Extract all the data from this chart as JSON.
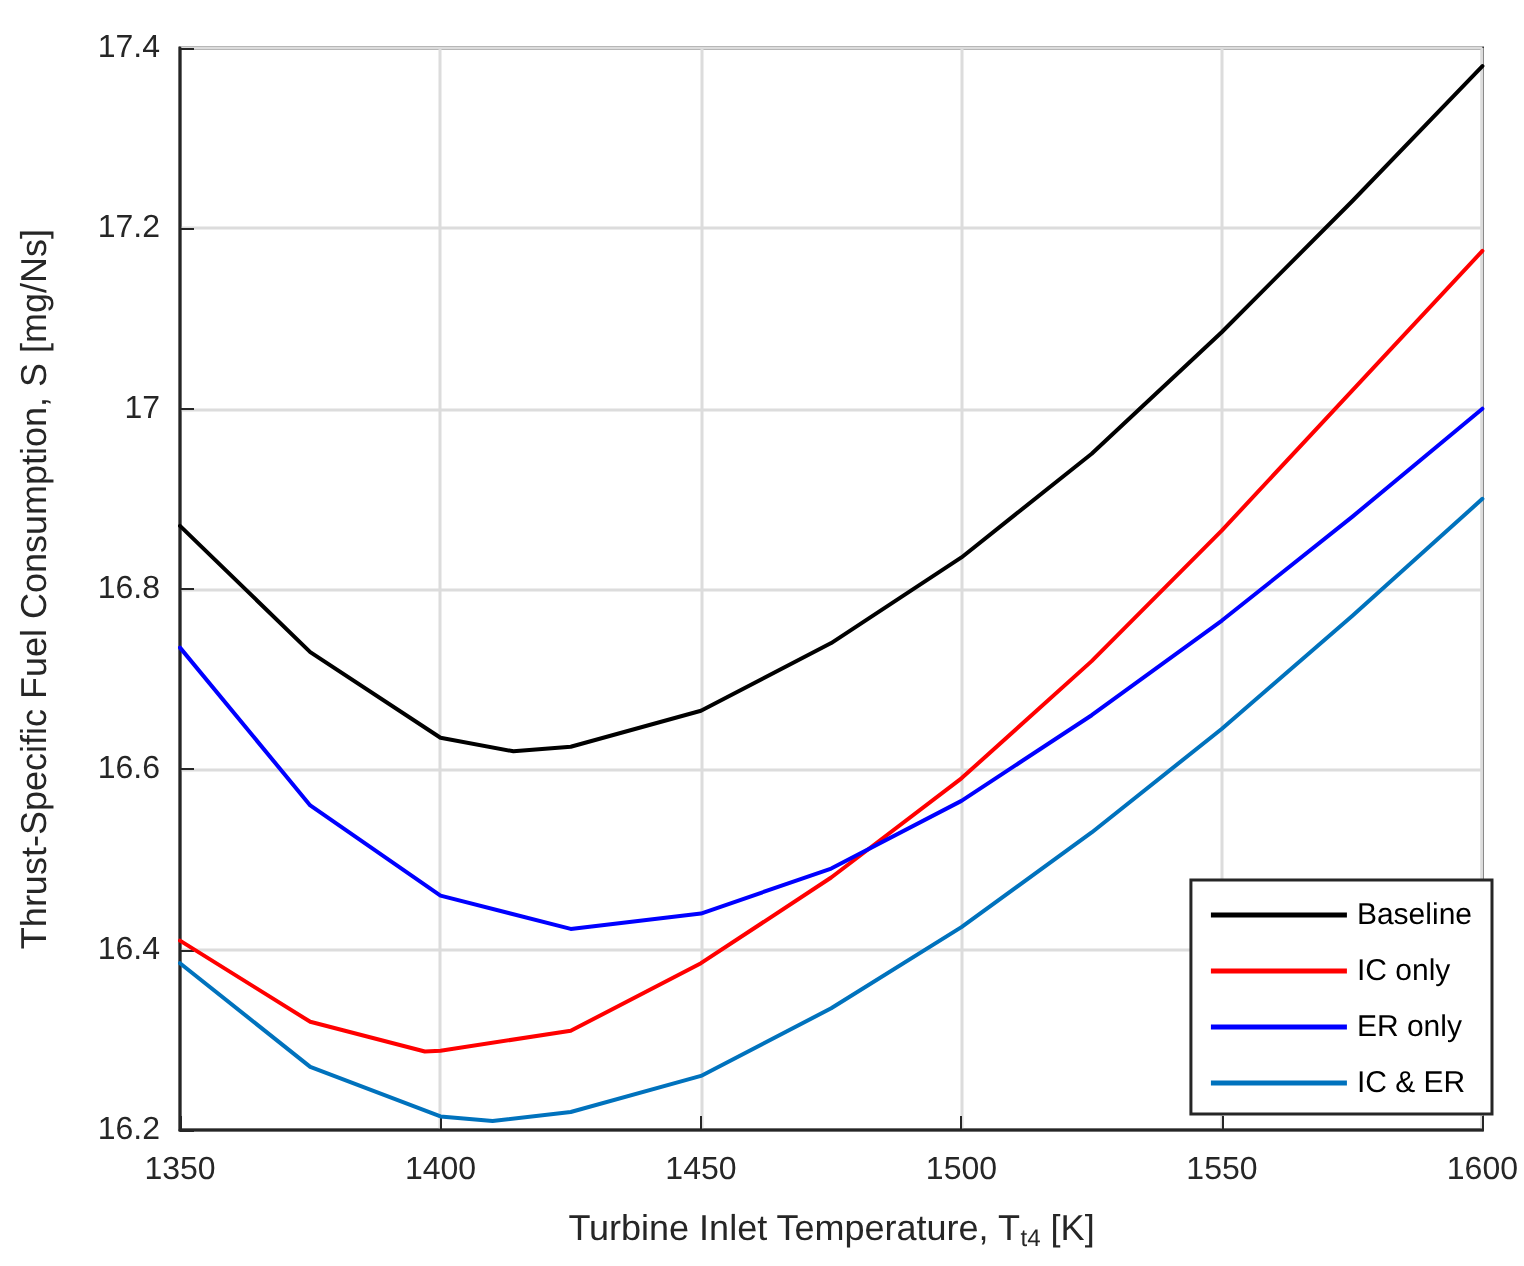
{
  "chart_data": {
    "type": "line",
    "xlabel": "Turbine Inlet Temperature, T$_{t4}$ [K]",
    "ylabel": "Thrust-Specific Fuel Consumption, S [mg/Ns]",
    "series": [
      {
        "name": "Baseline",
        "color": "#000000",
        "x": [
          1350,
          1375,
          1400,
          1414,
          1425,
          1450,
          1475,
          1500,
          1525,
          1550,
          1575,
          1600
        ],
        "values": [
          16.87,
          16.73,
          16.635,
          16.62,
          16.625,
          16.665,
          16.74,
          16.835,
          16.95,
          17.085,
          17.23,
          17.38
        ]
      },
      {
        "name": "IC only",
        "color": "#ff0000",
        "x": [
          1350,
          1375,
          1397,
          1400,
          1425,
          1450,
          1475,
          1500,
          1525,
          1550,
          1575,
          1600
        ],
        "values": [
          16.41,
          16.32,
          16.287,
          16.288,
          16.31,
          16.385,
          16.48,
          16.59,
          16.72,
          16.865,
          17.02,
          17.175
        ]
      },
      {
        "name": "ER only",
        "color": "#0000ff",
        "x": [
          1350,
          1375,
          1400,
          1425,
          1450,
          1475,
          1500,
          1525,
          1550,
          1575,
          1600
        ],
        "values": [
          16.735,
          16.56,
          16.46,
          16.423,
          16.44,
          16.49,
          16.565,
          16.66,
          16.765,
          16.88,
          17.0
        ]
      },
      {
        "name": "IC & ER",
        "color": "#0072bd",
        "x": [
          1350,
          1375,
          1400,
          1410,
          1425,
          1450,
          1475,
          1500,
          1525,
          1550,
          1575,
          1600
        ],
        "values": [
          16.385,
          16.27,
          16.215,
          16.21,
          16.22,
          16.26,
          16.335,
          16.425,
          16.53,
          16.645,
          16.77,
          16.9
        ]
      }
    ],
    "xlim": [
      1350,
      1600
    ],
    "xticks": [
      1350,
      1400,
      1450,
      1500,
      1550,
      1600
    ],
    "ylim": [
      16.2,
      17.4
    ],
    "yticks": [
      16.2,
      16.4,
      16.6,
      16.8,
      17,
      17.2,
      17.4
    ],
    "grid": true,
    "legend": "bottom right",
    "marker": "none",
    "line_style": "solid"
  }
}
